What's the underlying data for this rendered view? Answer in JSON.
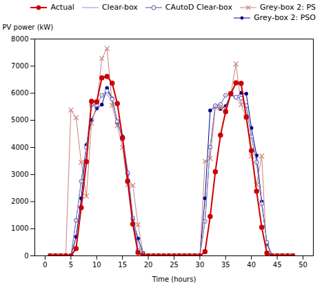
{
  "chart_data": {
    "type": "line",
    "xlabel": "Time (hours)",
    "ylabel": "PV power (kW)",
    "xlim": [
      -2,
      52
    ],
    "ylim": [
      0,
      8000
    ],
    "xticks": [
      0,
      5,
      10,
      15,
      20,
      25,
      30,
      35,
      40,
      45,
      50
    ],
    "yticks": [
      0,
      1000,
      2000,
      3000,
      4000,
      5000,
      6000,
      7000,
      8000
    ],
    "grid": false,
    "legend": "upper right",
    "x": [
      1,
      2,
      3,
      4,
      5,
      6,
      7,
      8,
      9,
      10,
      11,
      12,
      13,
      14,
      15,
      16,
      17,
      18,
      19,
      20,
      21,
      22,
      23,
      24,
      25,
      26,
      27,
      28,
      29,
      30,
      31,
      32,
      33,
      34,
      35,
      36,
      37,
      38,
      39,
      40,
      41,
      42,
      43,
      44,
      45,
      46,
      47,
      48
    ],
    "series": [
      {
        "name": "Actual",
        "color": "#cc0000",
        "marker": "circle",
        "line_style": "solid",
        "values": [
          0,
          0,
          0,
          0,
          0,
          270,
          1780,
          3470,
          5700,
          5680,
          6570,
          6620,
          6370,
          5620,
          4350,
          2760,
          1170,
          120,
          0,
          0,
          0,
          0,
          0,
          0,
          0,
          0,
          0,
          0,
          0,
          0,
          150,
          1450,
          3100,
          4450,
          5320,
          5980,
          6380,
          6360,
          5120,
          3880,
          2380,
          1050,
          100,
          0,
          0,
          0,
          0,
          0
        ]
      },
      {
        "name": "Clear-box",
        "color": "#9090cc",
        "marker": "none",
        "line_style": "solid",
        "values": [
          0,
          0,
          0,
          0,
          0,
          1300,
          2780,
          4000,
          5550,
          5580,
          5920,
          5950,
          5700,
          5000,
          4380,
          3200,
          1500,
          450,
          50,
          0,
          0,
          0,
          0,
          0,
          0,
          0,
          0,
          0,
          0,
          0,
          1300,
          4020,
          5560,
          5580,
          5920,
          5960,
          5780,
          5680,
          5500,
          4400,
          3450,
          1900,
          500,
          50,
          0,
          0,
          0,
          0
        ]
      },
      {
        "name": "CAutoD Clear-box",
        "color": "#5050aa",
        "marker": "open circle",
        "line_style": "solid",
        "values": [
          0,
          0,
          0,
          0,
          0,
          1310,
          2750,
          4000,
          5560,
          5570,
          5920,
          6080,
          5780,
          4960,
          4310,
          3060,
          1400,
          200,
          0,
          0,
          0,
          0,
          0,
          0,
          0,
          0,
          0,
          0,
          0,
          0,
          1270,
          4010,
          5540,
          5590,
          5920,
          5970,
          5850,
          5820,
          5540,
          4400,
          3450,
          1920,
          500,
          0,
          0,
          0,
          0,
          0
        ]
      },
      {
        "name": "Grey-box 2: PS",
        "color": "#cc8080",
        "marker": "x",
        "line_style": "solid",
        "values": [
          0,
          0,
          0,
          0,
          5380,
          5100,
          3450,
          2200,
          4900,
          5560,
          7280,
          7650,
          5550,
          4800,
          4000,
          2620,
          2600,
          1150,
          100,
          0,
          0,
          0,
          0,
          0,
          0,
          0,
          0,
          0,
          0,
          0,
          3490,
          3590,
          5480,
          5450,
          5450,
          5970,
          7080,
          5580,
          5100,
          3680,
          2620,
          3680,
          0,
          0,
          0,
          0,
          0,
          0
        ]
      },
      {
        "name": "Grey-box 2: PSO",
        "color": "#00008a",
        "marker": "dot",
        "line_style": "solid",
        "values": [
          0,
          0,
          0,
          0,
          0,
          700,
          2120,
          4090,
          5010,
          5440,
          5580,
          6190,
          5810,
          4920,
          4400,
          3020,
          1340,
          640,
          100,
          0,
          0,
          0,
          0,
          0,
          0,
          0,
          0,
          0,
          0,
          0,
          2120,
          5360,
          5530,
          5420,
          5520,
          5960,
          5840,
          6010,
          5980,
          4720,
          3700,
          2000,
          440,
          0,
          0,
          0,
          0,
          0
        ]
      }
    ]
  }
}
